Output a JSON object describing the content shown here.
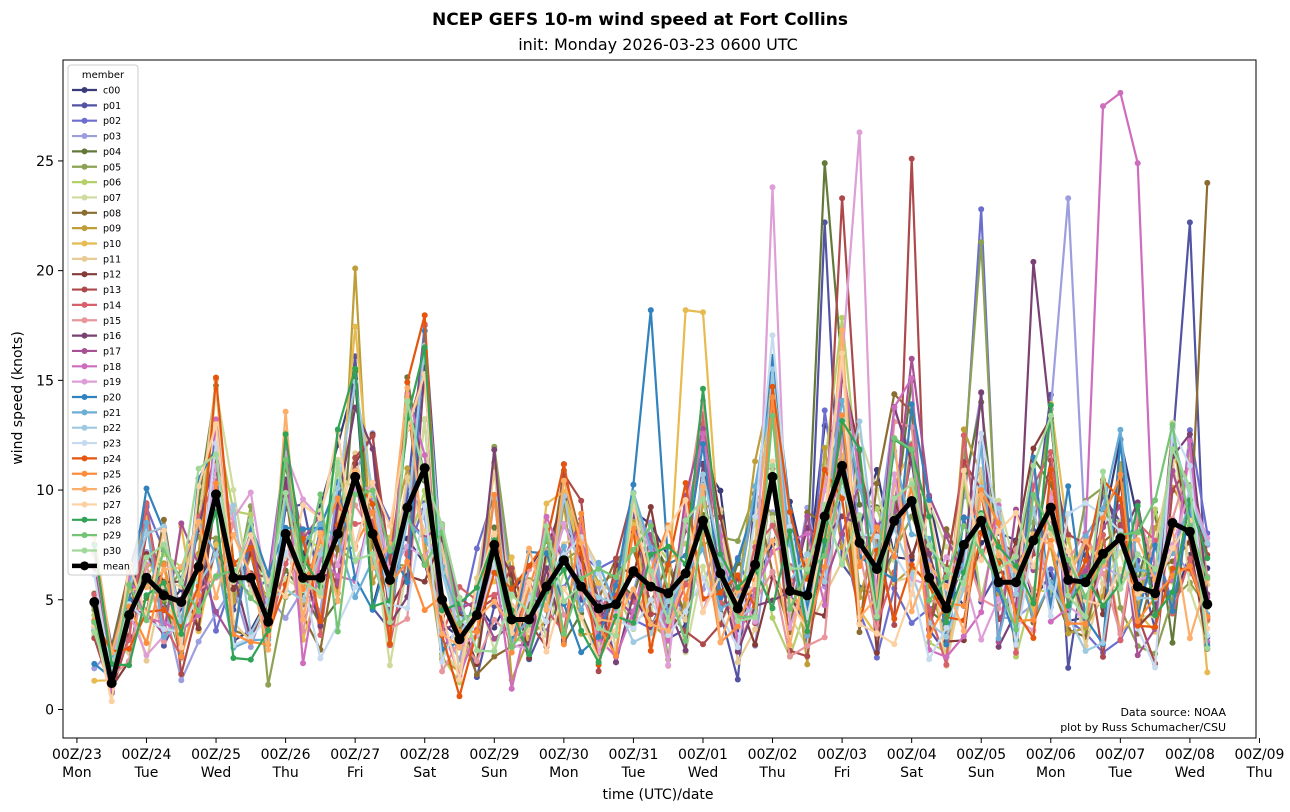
{
  "chart_data": {
    "type": "line",
    "title": "NCEP GEFS 10-m wind speed at Fort Collins",
    "subtitle": "init: Monday 2026-03-23 0600 UTC",
    "xlabel": "time (UTC)/date",
    "ylabel": "wind speed (knots)",
    "ylim": [
      -1.3,
      29.6
    ],
    "xlim": [
      -0.2,
      16.95
    ],
    "y_ticks": [
      0,
      5,
      10,
      15,
      20,
      25
    ],
    "x_ticks": [
      {
        "x": 0,
        "l1": "00Z/23",
        "l2": "Mon"
      },
      {
        "x": 1,
        "l1": "00Z/24",
        "l2": "Tue"
      },
      {
        "x": 2,
        "l1": "00Z/25",
        "l2": "Wed"
      },
      {
        "x": 3,
        "l1": "00Z/26",
        "l2": "Thu"
      },
      {
        "x": 4,
        "l1": "00Z/27",
        "l2": "Fri"
      },
      {
        "x": 5,
        "l1": "00Z/28",
        "l2": "Sat"
      },
      {
        "x": 6,
        "l1": "00Z/29",
        "l2": "Sun"
      },
      {
        "x": 7,
        "l1": "00Z/30",
        "l2": "Mon"
      },
      {
        "x": 8,
        "l1": "00Z/31",
        "l2": "Tue"
      },
      {
        "x": 9,
        "l1": "00Z/01",
        "l2": "Wed"
      },
      {
        "x": 10,
        "l1": "00Z/02",
        "l2": "Thu"
      },
      {
        "x": 11,
        "l1": "00Z/03",
        "l2": "Fri"
      },
      {
        "x": 12,
        "l1": "00Z/04",
        "l2": "Sat"
      },
      {
        "x": 13,
        "l1": "00Z/05",
        "l2": "Sun"
      },
      {
        "x": 14,
        "l1": "00Z/06",
        "l2": "Mon"
      },
      {
        "x": 15,
        "l1": "00Z/07",
        "l2": "Tue"
      },
      {
        "x": 16,
        "l1": "00Z/08",
        "l2": "Wed"
      },
      {
        "x": 17,
        "l1": "00Z/09",
        "l2": "Thu"
      }
    ],
    "legend_title": "member",
    "legend_position": "upper-left",
    "annotation_line1": "Data source: NOAA",
    "annotation_line2": "plot by Russ Schumacher/CSU",
    "members": [
      {
        "name": "c00",
        "color": "#393b79"
      },
      {
        "name": "p01",
        "color": "#5254a3"
      },
      {
        "name": "p02",
        "color": "#6b6ecf"
      },
      {
        "name": "p03",
        "color": "#9c9ede"
      },
      {
        "name": "p04",
        "color": "#637939"
      },
      {
        "name": "p05",
        "color": "#8ca252"
      },
      {
        "name": "p06",
        "color": "#b5cf6b"
      },
      {
        "name": "p07",
        "color": "#cedb9c"
      },
      {
        "name": "p08",
        "color": "#8c6d31"
      },
      {
        "name": "p09",
        "color": "#bd9e39"
      },
      {
        "name": "p10",
        "color": "#e7ba52"
      },
      {
        "name": "p11",
        "color": "#e7cb94"
      },
      {
        "name": "p12",
        "color": "#843c39"
      },
      {
        "name": "p13",
        "color": "#ad494a"
      },
      {
        "name": "p14",
        "color": "#d6616b"
      },
      {
        "name": "p15",
        "color": "#e7969c"
      },
      {
        "name": "p16",
        "color": "#7b4173"
      },
      {
        "name": "p17",
        "color": "#a55194"
      },
      {
        "name": "p18",
        "color": "#ce6dbd"
      },
      {
        "name": "p19",
        "color": "#de9ed6"
      },
      {
        "name": "p20",
        "color": "#3182bd"
      },
      {
        "name": "p21",
        "color": "#6baed6"
      },
      {
        "name": "p22",
        "color": "#9ecae1"
      },
      {
        "name": "p23",
        "color": "#c6dbef"
      },
      {
        "name": "p24",
        "color": "#e6550d"
      },
      {
        "name": "p25",
        "color": "#fd8d3c"
      },
      {
        "name": "p26",
        "color": "#fdae6b"
      },
      {
        "name": "p27",
        "color": "#fdd0a2"
      },
      {
        "name": "p28",
        "color": "#31a354"
      },
      {
        "name": "p29",
        "color": "#74c476"
      },
      {
        "name": "p30",
        "color": "#a1d99b"
      },
      {
        "name": "mean",
        "color": "#000000"
      }
    ],
    "x_start": 0.25,
    "x_step": 0.25,
    "mean_values": [
      4.9,
      1.2,
      4.3,
      6.0,
      5.2,
      4.9,
      6.5,
      9.8,
      6.0,
      6.0,
      4.0,
      8.0,
      6.0,
      6.0,
      8.0,
      10.6,
      8.0,
      5.9,
      9.2,
      11.0,
      5.0,
      3.2,
      4.3,
      7.5,
      4.1,
      4.1,
      5.6,
      6.8,
      5.6,
      4.6,
      4.8,
      6.3,
      5.6,
      5.3,
      6.2,
      8.6,
      6.2,
      4.6,
      6.6,
      10.6,
      5.4,
      5.2,
      8.8,
      11.1,
      7.6,
      6.4,
      8.6,
      9.5,
      6.0,
      4.6,
      7.5,
      8.6,
      5.8,
      5.8,
      7.7,
      9.2,
      5.9,
      5.8,
      7.1,
      7.8,
      5.6,
      5.3,
      8.5,
      8.1,
      4.8
    ],
    "peaks": [
      {
        "member": 9,
        "idx": 15,
        "value": 20.1
      },
      {
        "member": 28,
        "idx": 19,
        "value": 16.5
      },
      {
        "member": 20,
        "idx": 32,
        "value": 18.2
      },
      {
        "member": 10,
        "idx": 34,
        "value": 18.2
      },
      {
        "member": 10,
        "idx": 35,
        "value": 18.1
      },
      {
        "member": 19,
        "idx": 39,
        "value": 23.8
      },
      {
        "member": 4,
        "idx": 42,
        "value": 24.9
      },
      {
        "member": 1,
        "idx": 42,
        "value": 22.2
      },
      {
        "member": 13,
        "idx": 43,
        "value": 23.3
      },
      {
        "member": 19,
        "idx": 44,
        "value": 26.3
      },
      {
        "member": 13,
        "idx": 47,
        "value": 25.1
      },
      {
        "member": 2,
        "idx": 51,
        "value": 22.8
      },
      {
        "member": 5,
        "idx": 51,
        "value": 21.3
      },
      {
        "member": 16,
        "idx": 54,
        "value": 20.4
      },
      {
        "member": 3,
        "idx": 56,
        "value": 23.3
      },
      {
        "member": 18,
        "idx": 58,
        "value": 27.5
      },
      {
        "member": 18,
        "idx": 59,
        "value": 28.1
      },
      {
        "member": 18,
        "idx": 60,
        "value": 24.9
      },
      {
        "member": 1,
        "idx": 63,
        "value": 22.2
      },
      {
        "member": 8,
        "idx": 64,
        "value": 24.0
      }
    ]
  }
}
